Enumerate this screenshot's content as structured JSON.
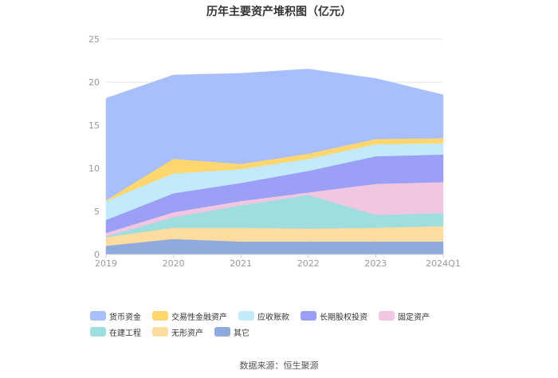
{
  "chart_data": {
    "type": "area",
    "stacked": true,
    "title": "历年主要资产堆积图（亿元）",
    "categories": [
      "2019",
      "2020",
      "2021",
      "2022",
      "2023",
      "2024Q1"
    ],
    "ylim": [
      0,
      25
    ],
    "yticks": [
      0,
      5,
      10,
      15,
      20,
      25
    ],
    "grid": true,
    "legend_position": "bottom",
    "series": [
      {
        "name": "其它",
        "color": "#8FAADC",
        "values": [
          1.0,
          1.8,
          1.5,
          1.5,
          1.5,
          1.5
        ]
      },
      {
        "name": "无形资产",
        "color": "#FFDCA0",
        "values": [
          1.0,
          1.3,
          1.6,
          1.5,
          1.6,
          1.8
        ]
      },
      {
        "name": "在建工程",
        "color": "#9EDEDE",
        "values": [
          0.1,
          1.2,
          2.6,
          3.9,
          1.5,
          1.5
        ]
      },
      {
        "name": "固定资产",
        "color": "#F0C6E2",
        "values": [
          0.4,
          0.6,
          0.5,
          0.3,
          3.6,
          3.6
        ]
      },
      {
        "name": "长期股权投资",
        "color": "#9B9FF5",
        "values": [
          1.5,
          2.2,
          2.1,
          2.5,
          3.2,
          3.2
        ]
      },
      {
        "name": "应收账款",
        "color": "#C2EAFA",
        "values": [
          2.2,
          2.3,
          1.6,
          1.4,
          1.4,
          1.3
        ]
      },
      {
        "name": "交易性金融资产",
        "color": "#FFD76E",
        "values": [
          0.1,
          1.7,
          0.6,
          0.6,
          0.6,
          0.6
        ]
      },
      {
        "name": "货币资金",
        "color": "#A9BFFB",
        "values": [
          11.8,
          9.7,
          10.5,
          9.8,
          7.0,
          5.0
        ]
      }
    ]
  },
  "legend_order": [
    "货币资金",
    "交易性金融资产",
    "应收账款",
    "长期股权投资",
    "固定资产",
    "在建工程",
    "无形资产",
    "其它"
  ],
  "source": "数据来源：恒生聚源"
}
